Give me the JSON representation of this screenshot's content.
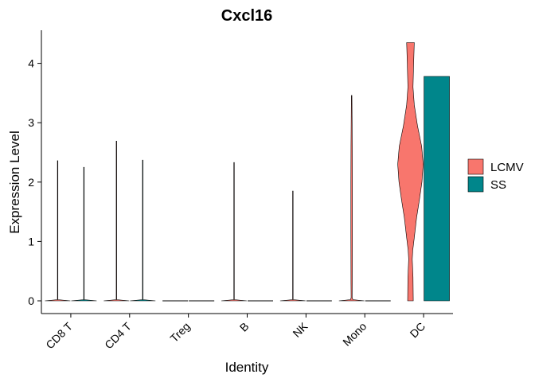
{
  "chart_data": {
    "type": "violin",
    "title": "Cxcl16",
    "xlabel": "Identity",
    "ylabel": "Expression Level",
    "ylim": [
      -0.2,
      4.55
    ],
    "yticks": [
      0,
      1,
      2,
      3,
      4
    ],
    "categories": [
      "CD8 T",
      "CD4 T",
      "Treg",
      "B",
      "NK",
      "Mono",
      "DC"
    ],
    "legend": {
      "position": "right",
      "entries": [
        "LCMV",
        "SS"
      ]
    },
    "colors": {
      "LCMV": "#F8766D",
      "SS": "#00868B"
    },
    "grid": false,
    "violins": [
      {
        "category": "CD8 T",
        "group": "LCMV",
        "max": 2.36,
        "profile": [
          [
            0,
            1
          ],
          [
            0.02,
            0.02
          ],
          [
            2.36,
            0.02
          ]
        ]
      },
      {
        "category": "CD8 T",
        "group": "SS",
        "max": 2.25,
        "profile": [
          [
            0,
            1
          ],
          [
            0.02,
            0.02
          ],
          [
            2.25,
            0.02
          ]
        ]
      },
      {
        "category": "CD4 T",
        "group": "LCMV",
        "max": 2.69,
        "profile": [
          [
            0,
            1
          ],
          [
            0.02,
            0.02
          ],
          [
            2.69,
            0.02
          ]
        ]
      },
      {
        "category": "CD4 T",
        "group": "SS",
        "max": 2.37,
        "profile": [
          [
            0,
            1
          ],
          [
            0.02,
            0.02
          ],
          [
            2.37,
            0.02
          ]
        ]
      },
      {
        "category": "Treg",
        "group": "LCMV",
        "max": 0,
        "profile": [
          [
            0,
            1
          ]
        ]
      },
      {
        "category": "Treg",
        "group": "SS",
        "max": 0,
        "profile": [
          [
            0,
            1
          ]
        ]
      },
      {
        "category": "B",
        "group": "LCMV",
        "max": 2.33,
        "profile": [
          [
            0,
            1
          ],
          [
            0.02,
            0.02
          ],
          [
            2.33,
            0.02
          ]
        ]
      },
      {
        "category": "B",
        "group": "SS",
        "max": 0,
        "profile": [
          [
            0,
            1
          ]
        ]
      },
      {
        "category": "NK",
        "group": "LCMV",
        "max": 1.85,
        "profile": [
          [
            0,
            1
          ],
          [
            0.02,
            0.02
          ],
          [
            1.85,
            0.02
          ]
        ]
      },
      {
        "category": "NK",
        "group": "SS",
        "max": 0,
        "profile": [
          [
            0,
            1
          ]
        ]
      },
      {
        "category": "Mono",
        "group": "LCMV",
        "max": 3.46,
        "profile": [
          [
            0,
            1
          ],
          [
            0.02,
            0.1
          ],
          [
            0.05,
            0.04
          ],
          [
            0.3,
            0.05
          ],
          [
            1.1,
            0.06
          ],
          [
            2.0,
            0.06
          ],
          [
            2.6,
            0.05
          ],
          [
            3.46,
            0.02
          ]
        ]
      },
      {
        "category": "Mono",
        "group": "SS",
        "max": 0,
        "profile": [
          [
            0,
            1
          ]
        ]
      },
      {
        "category": "DC",
        "group": "LCMV",
        "max": 4.35,
        "profile": [
          [
            0,
            0.22
          ],
          [
            0.4,
            0.2
          ],
          [
            0.7,
            0.14
          ],
          [
            0.85,
            0.18
          ],
          [
            1.1,
            0.32
          ],
          [
            1.4,
            0.48
          ],
          [
            1.7,
            0.7
          ],
          [
            2.0,
            0.9
          ],
          [
            2.3,
            1.0
          ],
          [
            2.6,
            0.88
          ],
          [
            2.95,
            0.55
          ],
          [
            3.3,
            0.3
          ],
          [
            3.6,
            0.2
          ],
          [
            4.0,
            0.25
          ],
          [
            4.35,
            0.3
          ]
        ]
      },
      {
        "category": "DC",
        "group": "SS",
        "max": 3.78,
        "profile": [
          [
            0,
            1
          ],
          [
            3.78,
            1
          ]
        ]
      }
    ]
  }
}
